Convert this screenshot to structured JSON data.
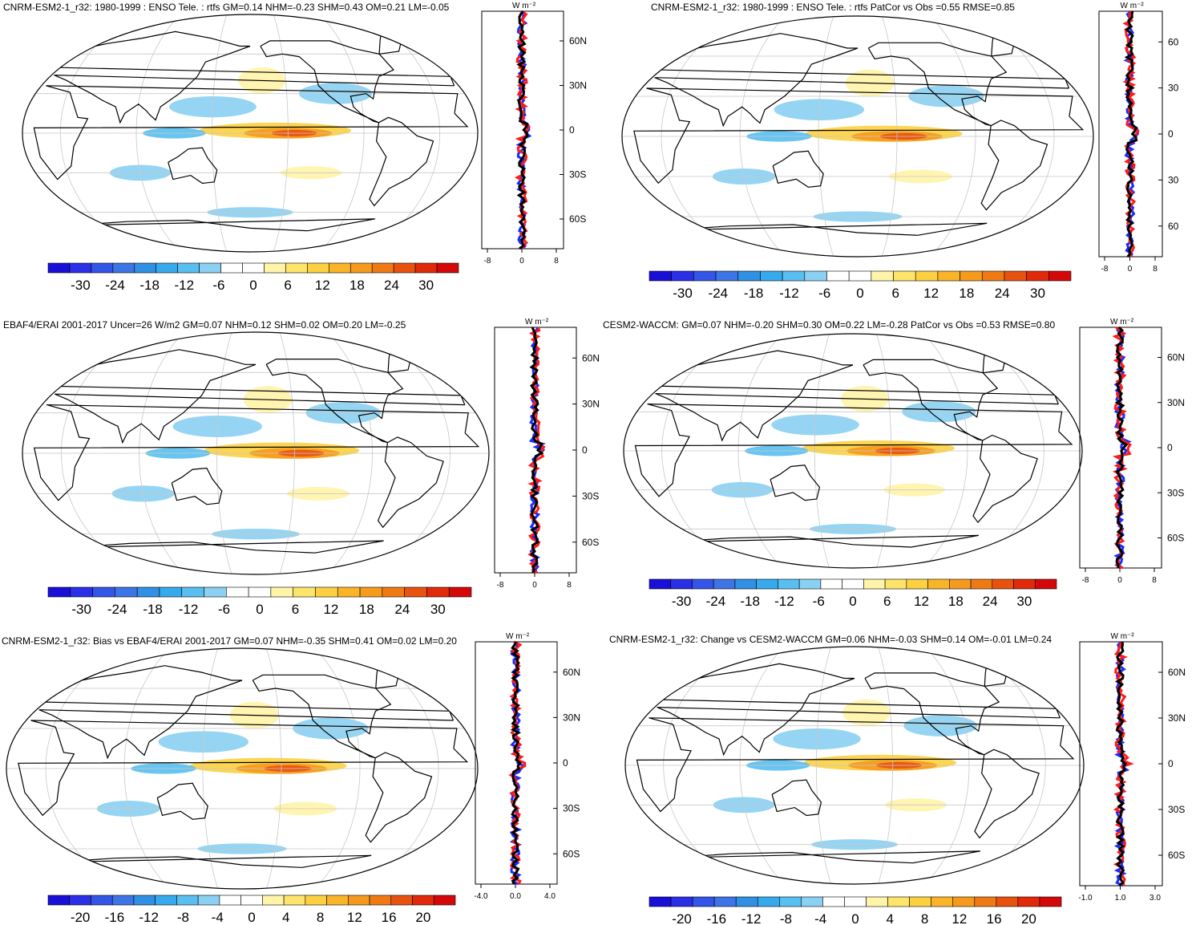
{
  "colors": {
    "palette": [
      "#1a0fd6",
      "#2b2fe6",
      "#3355e8",
      "#3d74e6",
      "#2f90e4",
      "#36aaec",
      "#58bff0",
      "#8ad0f2",
      "#ffffff",
      "#ffffff",
      "#fff4a8",
      "#fde46a",
      "#fcd040",
      "#f9b527",
      "#f59a1c",
      "#ef7a14",
      "#e8520f",
      "#e02a0a",
      "#d40808"
    ],
    "land_outline": "#000000",
    "graticule": "#c8c8c8",
    "profile_obs": "#000000",
    "profile_model": "#ff1a1a",
    "profile_other": "#1a2bff"
  },
  "panels": [
    {
      "id": "p1",
      "title": "CNRM-ESM2-1_r32: 1980-1999 : ENSO Tele. : rtfs GM=0.14 NHM=-0.23 SHM=0.43 OM=0.21 LM=-0.05",
      "colorbar_labels": [
        "-30",
        "-24",
        "-18",
        "-12",
        "-6",
        "0",
        "6",
        "12",
        "18",
        "24",
        "30"
      ],
      "profile_unit": "W m⁻²",
      "lat_labels": [
        "60N",
        "30N",
        "0",
        "30S",
        "60S"
      ],
      "x_ticks": [
        "-8",
        "0",
        "8"
      ]
    },
    {
      "id": "p2",
      "title": "CNRM-ESM2-1_r32: 1980-1999 : ENSO Tele. : rtfs PatCor vs Obs =0.55 RMSE=0.85",
      "colorbar_labels": [
        "-30",
        "-24",
        "-18",
        "-12",
        "-6",
        "0",
        "6",
        "12",
        "18",
        "24",
        "30"
      ],
      "profile_unit": "W m⁻²",
      "lat_labels": [
        "60",
        "30",
        "0",
        "30",
        "60"
      ],
      "x_ticks": [
        "-8",
        "0",
        "8"
      ]
    },
    {
      "id": "p3",
      "title": "EBAF4/ERAI 2001-2017 Uncer=26 W/m2 GM=0.07 NHM=0.12 SHM=0.02 OM=0.20 LM=-0.25",
      "colorbar_labels": [
        "-30",
        "-24",
        "-18",
        "-12",
        "-6",
        "0",
        "6",
        "12",
        "18",
        "24",
        "30"
      ],
      "profile_unit": "W m⁻²",
      "lat_labels": [
        "60N",
        "30N",
        "0",
        "30S",
        "60S"
      ],
      "x_ticks": [
        "-8",
        "0",
        "8"
      ]
    },
    {
      "id": "p4",
      "title": "CESM2-WACCM: GM=0.07 NHM=-0.20 SHM=0.30 OM=0.22 LM=-0.28 PatCor vs Obs =0.53 RMSE=0.80",
      "colorbar_labels": [
        "-30",
        "-24",
        "-18",
        "-12",
        "-6",
        "0",
        "6",
        "12",
        "18",
        "24",
        "30"
      ],
      "profile_unit": "W m⁻²",
      "lat_labels": [
        "60N",
        "30N",
        "0",
        "30S",
        "60S"
      ],
      "x_ticks": [
        "-8",
        "0",
        "8"
      ]
    },
    {
      "id": "p5",
      "title": "CNRM-ESM2-1_r32: Bias vs EBAF4/ERAI 2001-2017 GM=0.07 NHM=-0.35 SHM=0.41 OM=0.02 LM=0.20",
      "colorbar_labels": [
        "-20",
        "-16",
        "-12",
        "-8",
        "-4",
        "0",
        "4",
        "8",
        "12",
        "16",
        "20"
      ],
      "profile_unit": "W m⁻²",
      "lat_labels": [
        "60N",
        "30N",
        "0",
        "30S",
        "60S"
      ],
      "x_ticks": [
        "-4.0",
        "0.0",
        "4.0"
      ]
    },
    {
      "id": "p6",
      "title": "CNRM-ESM2-1_r32: Change vs CESM2-WACCM GM=0.06 NHM=-0.03 SHM=0.14 OM=-0.01 LM=0.24",
      "colorbar_labels": [
        "-20",
        "-16",
        "-12",
        "-8",
        "-4",
        "0",
        "4",
        "8",
        "12",
        "16",
        "20"
      ],
      "profile_unit": "W m⁻²",
      "lat_labels": [
        "60N",
        "30N",
        "0",
        "30S",
        "60S"
      ],
      "x_ticks": [
        "-1.0",
        "1.0",
        "3.0"
      ]
    }
  ]
}
